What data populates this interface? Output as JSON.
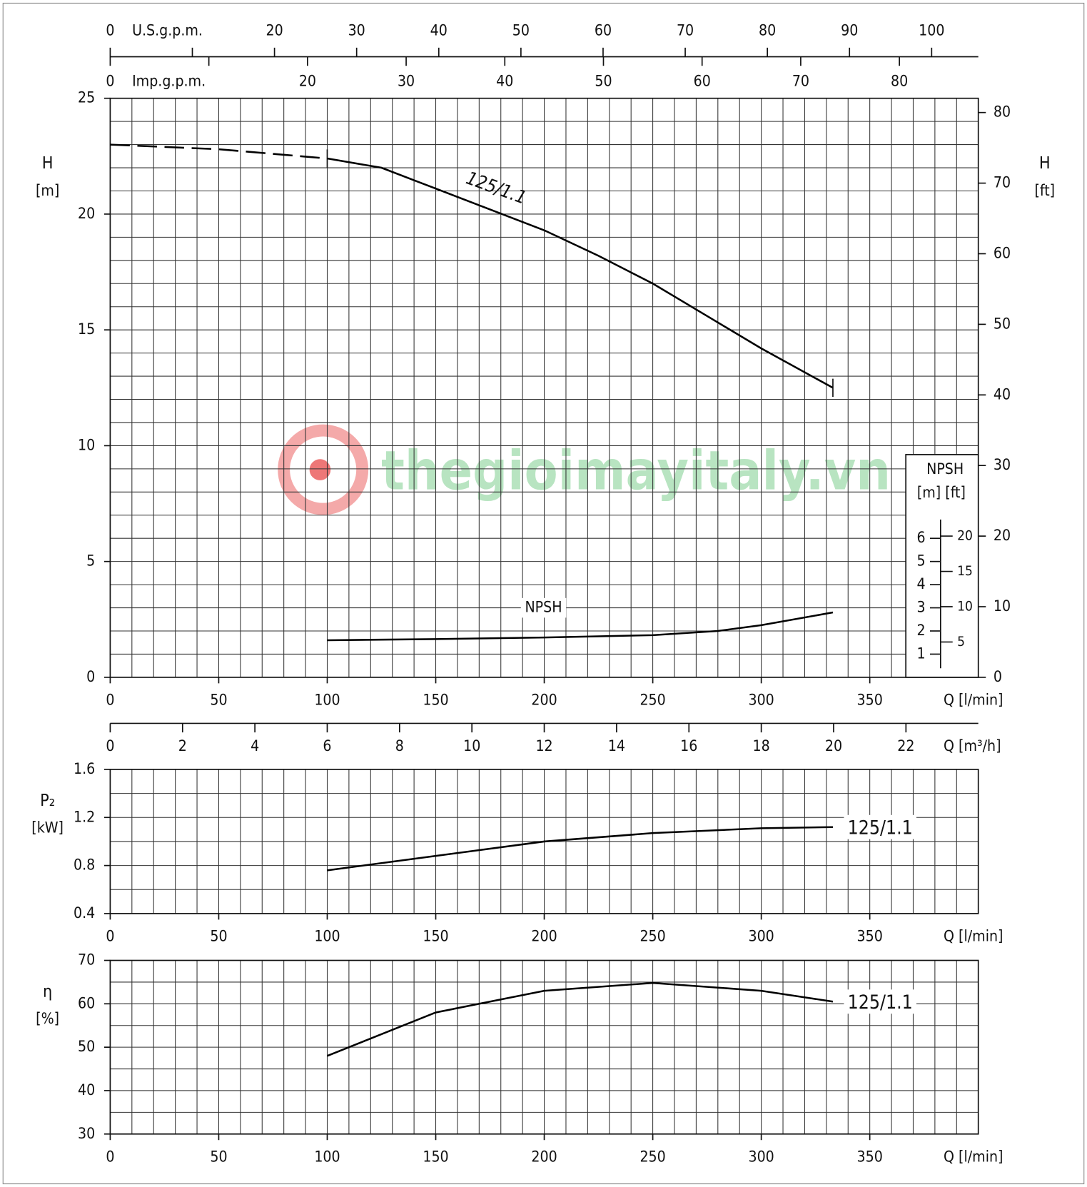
{
  "chart_data": [
    {
      "type": "line",
      "x_label": "Q [l/min]",
      "y_label": [
        "H",
        "[m]"
      ],
      "y2_label": [
        "H",
        "[ft]"
      ],
      "xlim": [
        0,
        400
      ],
      "xticks": [
        0,
        50,
        100,
        150,
        200,
        250,
        300,
        350
      ],
      "xgrid_step": 10,
      "ylim": [
        0,
        25
      ],
      "yticks": [
        0,
        5,
        10,
        15,
        20,
        25
      ],
      "ygrid_step": 1,
      "y2lim": [
        0,
        82.02
      ],
      "y2ticks": [
        0,
        10,
        20,
        30,
        40,
        50,
        60,
        70,
        80
      ],
      "grid": true,
      "top_axes": [
        {
          "label": "U.S.g.p.m.",
          "xlim": [
            0,
            105.68
          ],
          "xticks": [
            0,
            20,
            30,
            40,
            50,
            60,
            70,
            80,
            90,
            100
          ],
          "minor_ticks": [
            10
          ],
          "side": "top"
        },
        {
          "label": "Imp.g.p.m.",
          "xlim": [
            0,
            88.0
          ],
          "xticks": [
            0,
            20,
            30,
            40,
            50,
            60,
            70,
            80
          ],
          "minor_ticks": [
            10
          ],
          "side": "bottom"
        }
      ],
      "flow_axis": {
        "label": "Q [m³/h]",
        "xlim": [
          0,
          24
        ],
        "xticks": [
          0,
          2,
          4,
          6,
          8,
          10,
          12,
          14,
          16,
          18,
          20,
          22
        ]
      },
      "npsh_scale": {
        "title": "NPSH",
        "units": "[m]  [ft]",
        "m_ticks": [
          1,
          2,
          3,
          4,
          5,
          6
        ],
        "ft_ticks": [
          5,
          10,
          15,
          20
        ]
      },
      "watermark": "thegioimayitaly.vn",
      "series": [
        {
          "name": "125/1.1",
          "color": "#000000",
          "dashed": false,
          "x": [
            100,
            125,
            150,
            175,
            200,
            225,
            250,
            275,
            300,
            333
          ],
          "values": [
            22.4,
            22.0,
            21.1,
            20.2,
            19.3,
            18.2,
            17.0,
            15.6,
            14.2,
            12.5
          ]
        },
        {
          "color": "#000000",
          "dashed": true,
          "x": [
            0,
            50,
            100
          ],
          "values": [
            23.0,
            22.8,
            22.4
          ]
        },
        {
          "name": "NPSH",
          "color": "#000000",
          "dashed": false,
          "x": [
            100,
            150,
            200,
            250,
            280,
            300,
            333
          ],
          "values": [
            1.6,
            1.65,
            1.72,
            1.82,
            2.0,
            2.25,
            2.8
          ]
        }
      ]
    },
    {
      "type": "line",
      "x_label": "Q [l/min]",
      "y_label": [
        "P₂",
        "[kW]"
      ],
      "xlim": [
        0,
        400
      ],
      "xticks": [
        0,
        50,
        100,
        150,
        200,
        250,
        300,
        350
      ],
      "xgrid_step": 10,
      "ylim": [
        0.4,
        1.6
      ],
      "yticks": [
        0.4,
        0.8,
        1.2,
        1.6
      ],
      "ygrid_step": 0.2,
      "grid": true,
      "series": [
        {
          "name": "125/1.1",
          "color": "#000000",
          "dashed": false,
          "x": [
            100,
            150,
            200,
            250,
            300,
            333
          ],
          "values": [
            0.76,
            0.88,
            1.0,
            1.07,
            1.11,
            1.12
          ]
        }
      ]
    },
    {
      "type": "line",
      "x_label": "Q [l/min]",
      "y_label": [
        "η",
        "[%]"
      ],
      "xlim": [
        0,
        400
      ],
      "xticks": [
        0,
        50,
        100,
        150,
        200,
        250,
        300,
        350
      ],
      "xgrid_step": 10,
      "ylim": [
        30,
        70
      ],
      "yticks": [
        30,
        40,
        50,
        60,
        70
      ],
      "ygrid_step": 5,
      "grid": true,
      "series": [
        {
          "name": "125/1.1",
          "color": "#000000",
          "dashed": false,
          "x": [
            100,
            150,
            200,
            250,
            300,
            333
          ],
          "values": [
            48,
            58,
            63,
            64.8,
            63,
            60.5
          ]
        }
      ]
    }
  ]
}
